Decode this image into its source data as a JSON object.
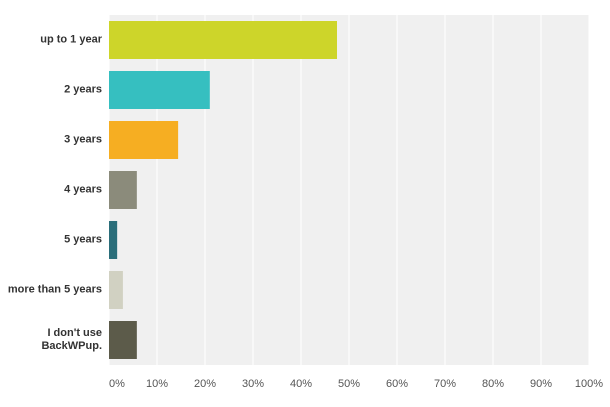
{
  "chart_data": {
    "type": "bar",
    "orientation": "horizontal",
    "categories": [
      "up to 1 year",
      "2 years",
      "3 years",
      "4 years",
      "5 years",
      "more than 5 years",
      "I don't use BackWPup."
    ],
    "values": [
      47.5,
      21.0,
      14.4,
      5.8,
      1.7,
      2.9,
      5.8
    ],
    "colors": [
      "#cdd52a",
      "#36bfc0",
      "#f6ae22",
      "#8b8b7b",
      "#2b6e7a",
      "#d1d1c2",
      "#5c5b4a"
    ],
    "xlim": [
      0,
      100
    ],
    "xticks": [
      {
        "value": 0,
        "label": "0%"
      },
      {
        "value": 10,
        "label": "10%"
      },
      {
        "value": 20,
        "label": "20%"
      },
      {
        "value": 30,
        "label": "30%"
      },
      {
        "value": 40,
        "label": "40%"
      },
      {
        "value": 50,
        "label": "50%"
      },
      {
        "value": 60,
        "label": "60%"
      },
      {
        "value": 70,
        "label": "70%"
      },
      {
        "value": 80,
        "label": "80%"
      },
      {
        "value": 90,
        "label": "90%"
      },
      {
        "value": 100,
        "label": "100%"
      }
    ],
    "grid": true
  }
}
